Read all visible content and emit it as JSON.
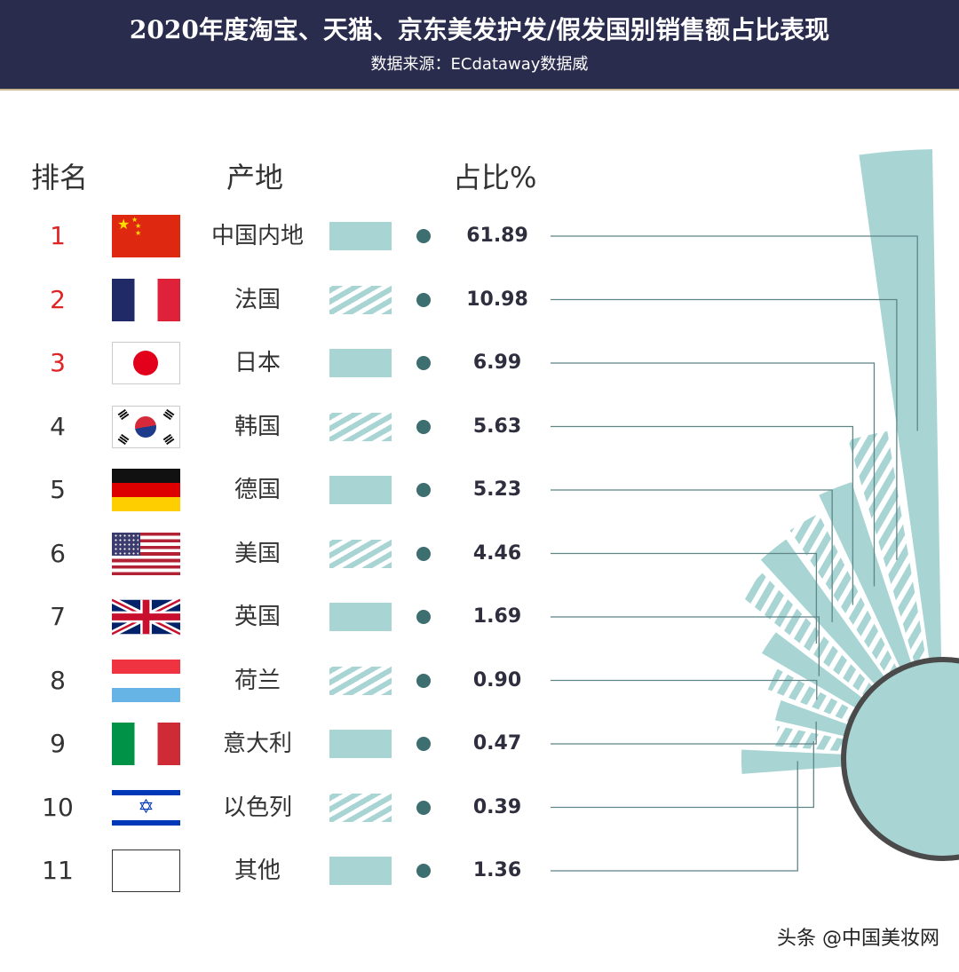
{
  "header": {
    "title": "2020年度淘宝、天猫、京东美发护发/假发国别销售额占比表现",
    "source": "数据来源：ECdataway数据威"
  },
  "columns": {
    "rank": "排名",
    "origin": "产地",
    "share": "占比%"
  },
  "rows": [
    {
      "rank": "1",
      "country": "中国内地",
      "flag": "china-flag-icon",
      "value": "61.89"
    },
    {
      "rank": "2",
      "country": "法国",
      "flag": "france-flag-icon",
      "value": "10.98"
    },
    {
      "rank": "3",
      "country": "日本",
      "flag": "japan-flag-icon",
      "value": "6.99"
    },
    {
      "rank": "4",
      "country": "韩国",
      "flag": "korea-flag-icon",
      "value": "5.63"
    },
    {
      "rank": "5",
      "country": "德国",
      "flag": "germany-flag-icon",
      "value": "5.23"
    },
    {
      "rank": "6",
      "country": "美国",
      "flag": "usa-flag-icon",
      "value": "4.46"
    },
    {
      "rank": "7",
      "country": "英国",
      "flag": "uk-flag-icon",
      "value": "1.69"
    },
    {
      "rank": "8",
      "country": "荷兰",
      "flag": "netherlands-flag-icon",
      "value": "0.90"
    },
    {
      "rank": "9",
      "country": "意大利",
      "flag": "italy-flag-icon",
      "value": "0.47"
    },
    {
      "rank": "10",
      "country": "以色列",
      "flag": "israel-flag-icon",
      "value": "0.39"
    },
    {
      "rank": "11",
      "country": "其他",
      "flag": "blank-flag-icon",
      "value": "1.36"
    }
  ],
  "chart_data": {
    "type": "pie",
    "categories": [
      "中国内地",
      "法国",
      "日本",
      "韩国",
      "德国",
      "美国",
      "英国",
      "荷兰",
      "意大利",
      "以色列",
      "其他"
    ],
    "values": [
      61.89,
      10.98,
      6.99,
      5.63,
      5.23,
      4.46,
      1.69,
      0.9,
      0.47,
      0.39,
      1.36
    ],
    "style": "radial-bar with center circle, alternating solid/striped sectors",
    "ylabel": "占比%"
  },
  "colors": {
    "header_bg": "#2a2c4e",
    "teal": "#a8d4d4",
    "dot": "#3d6e70",
    "rank_top3": "#e02424",
    "rank_other": "#333333"
  },
  "watermark": "头条 @中国美妆网"
}
